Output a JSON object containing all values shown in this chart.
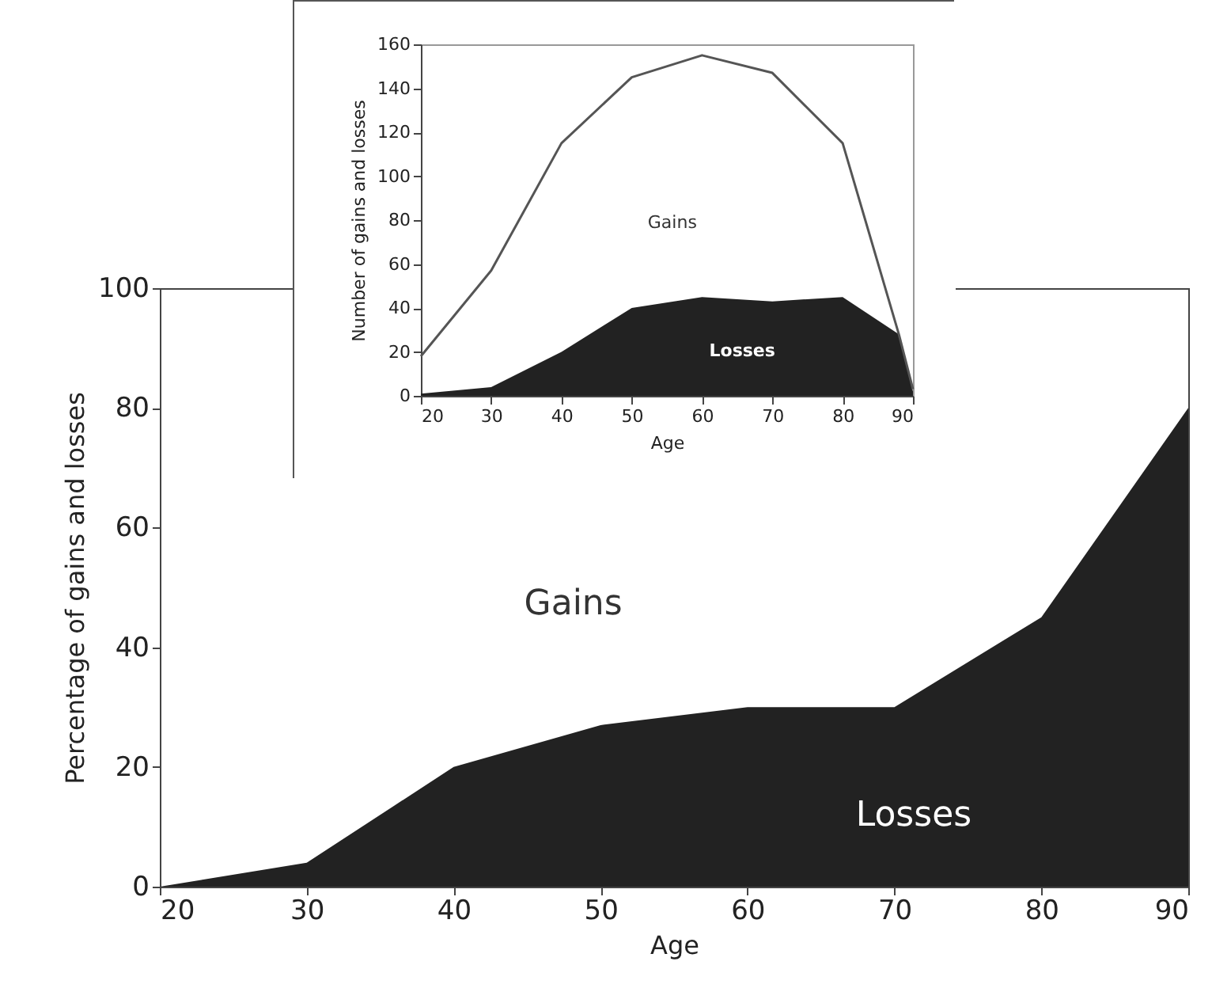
{
  "chart_data": [
    {
      "type": "area",
      "xlabel": "Age",
      "ylabel": "Percentage of gains and losses",
      "x": [
        20,
        30,
        40,
        50,
        60,
        70,
        80,
        90
      ],
      "series": [
        {
          "color": "#222222",
          "values": [
            0,
            4,
            20,
            27,
            30,
            30,
            45,
            80
          ]
        }
      ],
      "xlim": [
        20,
        90
      ],
      "xticks": [
        20,
        30,
        40,
        50,
        60,
        70,
        80,
        90
      ],
      "ylim": [
        0,
        100
      ],
      "yticks": [
        0,
        20,
        40,
        60,
        80,
        100
      ],
      "annotations": [
        "Gains",
        "Losses"
      ]
    },
    {
      "type": "line",
      "xlabel": "Age",
      "ylabel": "Number of gains and losses",
      "series": [
        {
          "color": "#555555",
          "x": [
            20,
            30,
            40,
            50,
            60,
            70,
            80,
            88,
            90
          ],
          "values": [
            18,
            57,
            115,
            145,
            155,
            147,
            115,
            28,
            3
          ]
        },
        {
          "type": "area",
          "color": "#222222",
          "x": [
            20,
            30,
            40,
            50,
            60,
            70,
            80,
            88,
            90
          ],
          "values": [
            1,
            4,
            20,
            40,
            45,
            43,
            45,
            28,
            2
          ]
        }
      ],
      "xlim": [
        20,
        90
      ],
      "xticks": [
        20,
        30,
        40,
        50,
        60,
        70,
        80,
        90
      ],
      "ylim": [
        0,
        160
      ],
      "yticks": [
        0,
        20,
        40,
        60,
        80,
        100,
        120,
        140,
        160
      ],
      "annotations": [
        "Gains",
        "Losses"
      ]
    }
  ]
}
